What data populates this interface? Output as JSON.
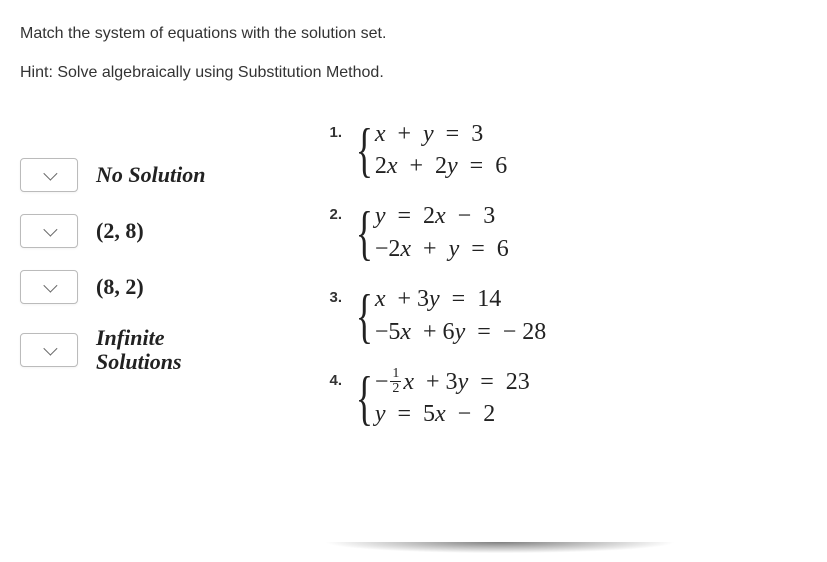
{
  "instructions": {
    "line1": "Match the system of equations with the solution set.",
    "line2": "Hint: Solve algebraically using Substitution Method."
  },
  "options": [
    {
      "label_html": "No Solution",
      "italic": true
    },
    {
      "label_html": "(2, 8)",
      "italic": false
    },
    {
      "label_html": "(8, 2)",
      "italic": false
    },
    {
      "label_html": "Infinite",
      "label_html2": "Solutions",
      "italic": true
    }
  ],
  "questions": [
    {
      "num": "1.",
      "eq1": "x + y = 3",
      "eq2": "2x + 2y = 6"
    },
    {
      "num": "2.",
      "eq1": "y = 2x − 3",
      "eq2": "−2x + y = 6"
    },
    {
      "num": "3.",
      "eq1": "x + 3y = 14",
      "eq2": "−5x + 6y = − 28"
    },
    {
      "num": "4.",
      "eq1_prefix": "−",
      "eq1_frac_n": "1",
      "eq1_frac_d": "2",
      "eq1_suffix": "x + 3y = 23",
      "eq2": "y = 5x − 2"
    }
  ],
  "styling": {
    "body_width": 827,
    "body_height": 562,
    "text_color": "#333",
    "math_color": "#222",
    "dropdown_border": "#bbb",
    "eq_fontsize": 24,
    "option_fontsize": 22,
    "instr_fontsize": 16
  }
}
